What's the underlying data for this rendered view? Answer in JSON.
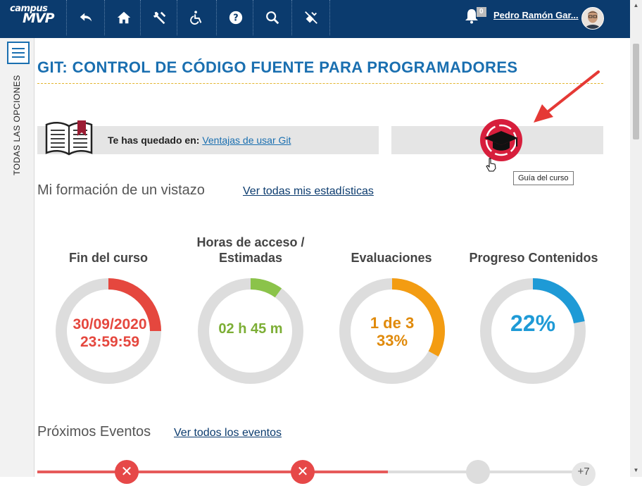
{
  "header": {
    "logo_top": "campus",
    "logo_bottom": "MVP",
    "notifications_count": "0",
    "user_name": "Pedro Ramón Gar...",
    "nav_icons": [
      "back-icon",
      "home-icon",
      "tools-icon",
      "accessibility-icon",
      "help-icon",
      "search-icon",
      "no-connection-icon"
    ]
  },
  "sidebar": {
    "vertical_label": "TODAS LAS OPCIONES"
  },
  "course": {
    "title": "GIT: CONTROL DE CÓDIGO FUENTE PARA PROGRAMADORES"
  },
  "resume": {
    "label": "Te has quedado en:",
    "link": "Ventajas de usar Git"
  },
  "guide": {
    "tooltip": "Guía del curso"
  },
  "overview": {
    "title": "Mi formación de un vistazo",
    "stats_link": "Ver todas mis estadísticas"
  },
  "stats": [
    {
      "label_line1": "Fin del curso",
      "label_line2": "",
      "value_line1": "30/09/2020",
      "value_line2": "23:59:59",
      "color": "#e5473e",
      "fraction": 0.25
    },
    {
      "label_line1": "Horas de acceso /",
      "label_line2": "Estimadas",
      "value_line1": "02 h 45 m",
      "value_line2": "",
      "color": "#8bc34a",
      "fraction": 0.1
    },
    {
      "label_line1": "Evaluaciones",
      "label_line2": "",
      "value_line1": "1 de 3",
      "value_line2": "33%",
      "color": "#f39c12",
      "fraction": 0.33
    },
    {
      "label_line1": "Progreso Contenidos",
      "label_line2": "",
      "value_line1": "22%",
      "value_line2": "",
      "color": "#1e9ad6",
      "fraction": 0.22
    }
  ],
  "events": {
    "title": "Próximos Eventos",
    "link": "Ver todos los eventos",
    "more": "+7"
  },
  "colors": {
    "topbar": "#0b3b6e",
    "accent": "#1a6fb0",
    "ring_track": "#dddddd"
  }
}
